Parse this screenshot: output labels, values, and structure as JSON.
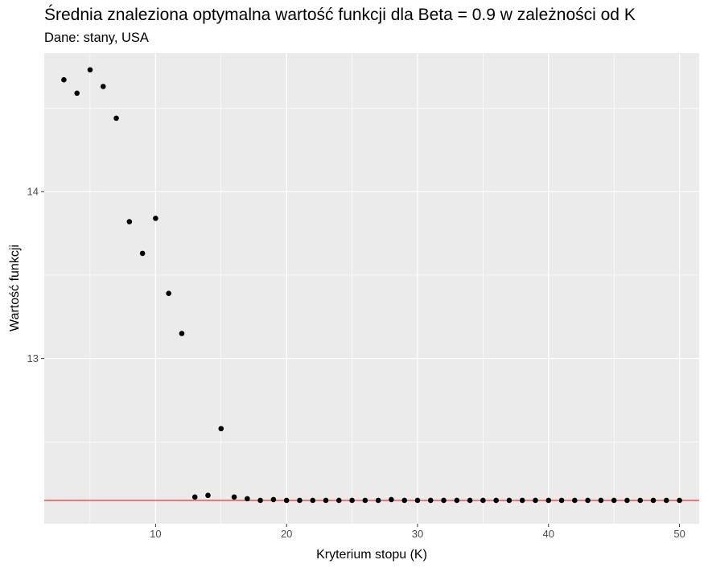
{
  "chart_data": {
    "type": "scatter",
    "title": "Średnia znaleziona optymalna wartość funkcji dla Beta = 0.9 w zależności od K",
    "subtitle": "Dane: stany, USA",
    "xlabel": "Kryterium stopu (K)",
    "ylabel": "Wartość funkcji",
    "xlim": [
      1.5,
      51.5
    ],
    "ylim": [
      12.01,
      14.83
    ],
    "x_ticks": [
      10,
      20,
      30,
      40,
      50
    ],
    "y_ticks": [
      13,
      14
    ],
    "hline": {
      "y": 12.15,
      "color": "#ff0000"
    },
    "grid": true,
    "background": "#ebebeb",
    "point_color": "#000000",
    "points": [
      {
        "x": 3,
        "y": 14.67
      },
      {
        "x": 4,
        "y": 14.59
      },
      {
        "x": 5,
        "y": 14.73
      },
      {
        "x": 6,
        "y": 14.63
      },
      {
        "x": 7,
        "y": 14.44
      },
      {
        "x": 8,
        "y": 13.82
      },
      {
        "x": 9,
        "y": 13.63
      },
      {
        "x": 10,
        "y": 13.84
      },
      {
        "x": 11,
        "y": 13.39
      },
      {
        "x": 12,
        "y": 13.15
      },
      {
        "x": 13,
        "y": 12.17
      },
      {
        "x": 14,
        "y": 12.18
      },
      {
        "x": 15,
        "y": 12.58
      },
      {
        "x": 16,
        "y": 12.17
      },
      {
        "x": 17,
        "y": 12.16
      },
      {
        "x": 18,
        "y": 12.15
      },
      {
        "x": 19,
        "y": 12.155
      },
      {
        "x": 20,
        "y": 12.15
      },
      {
        "x": 21,
        "y": 12.15
      },
      {
        "x": 22,
        "y": 12.15
      },
      {
        "x": 23,
        "y": 12.15
      },
      {
        "x": 24,
        "y": 12.15
      },
      {
        "x": 25,
        "y": 12.15
      },
      {
        "x": 26,
        "y": 12.15
      },
      {
        "x": 27,
        "y": 12.15
      },
      {
        "x": 28,
        "y": 12.155
      },
      {
        "x": 29,
        "y": 12.15
      },
      {
        "x": 30,
        "y": 12.15
      },
      {
        "x": 31,
        "y": 12.15
      },
      {
        "x": 32,
        "y": 12.15
      },
      {
        "x": 33,
        "y": 12.15
      },
      {
        "x": 34,
        "y": 12.15
      },
      {
        "x": 35,
        "y": 12.15
      },
      {
        "x": 36,
        "y": 12.15
      },
      {
        "x": 37,
        "y": 12.15
      },
      {
        "x": 38,
        "y": 12.15
      },
      {
        "x": 39,
        "y": 12.15
      },
      {
        "x": 40,
        "y": 12.15
      },
      {
        "x": 41,
        "y": 12.15
      },
      {
        "x": 42,
        "y": 12.15
      },
      {
        "x": 43,
        "y": 12.15
      },
      {
        "x": 44,
        "y": 12.15
      },
      {
        "x": 45,
        "y": 12.15
      },
      {
        "x": 46,
        "y": 12.15
      },
      {
        "x": 47,
        "y": 12.15
      },
      {
        "x": 48,
        "y": 12.15
      },
      {
        "x": 49,
        "y": 12.15
      },
      {
        "x": 50,
        "y": 12.15
      }
    ]
  }
}
